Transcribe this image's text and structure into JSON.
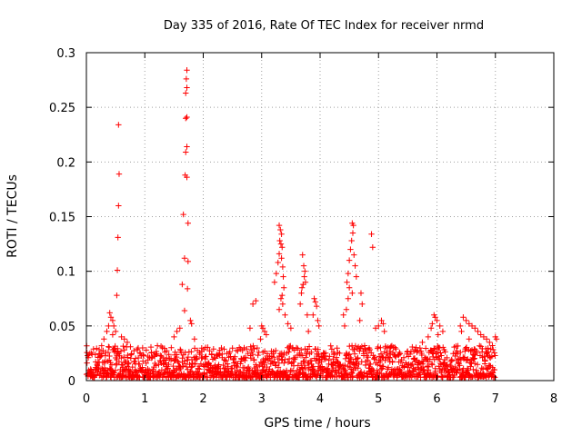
{
  "chart_data": {
    "type": "scatter",
    "title": "Day 335 of 2016, Rate Of TEC Index for receiver nrmd",
    "xlabel": "GPS time / hours",
    "ylabel": "ROTI / TECUs",
    "xlim": [
      0,
      8
    ],
    "ylim": [
      0,
      0.3
    ],
    "xticks": [
      "0",
      "1",
      "2",
      "3",
      "4",
      "5",
      "6",
      "7",
      "8"
    ],
    "yticks": [
      "0",
      "0.05",
      "0.1",
      "0.15",
      "0.2",
      "0.25",
      "0.3"
    ],
    "grid": true,
    "marker": "+",
    "color": "#ff0000",
    "series": [
      {
        "name": "ROTI",
        "points": [
          [
            0.55,
            0.234
          ],
          [
            0.56,
            0.189
          ],
          [
            0.55,
            0.16
          ],
          [
            0.54,
            0.131
          ],
          [
            0.53,
            0.101
          ],
          [
            0.52,
            0.078
          ],
          [
            0.4,
            0.062
          ],
          [
            0.42,
            0.058
          ],
          [
            0.45,
            0.055
          ],
          [
            0.38,
            0.05
          ],
          [
            0.47,
            0.05
          ],
          [
            0.35,
            0.045
          ],
          [
            0.5,
            0.045
          ],
          [
            0.6,
            0.04
          ],
          [
            0.65,
            0.038
          ],
          [
            0.7,
            0.035
          ],
          [
            0.3,
            0.038
          ],
          [
            0.45,
            0.042
          ],
          [
            1.72,
            0.284
          ],
          [
            1.71,
            0.276
          ],
          [
            1.72,
            0.268
          ],
          [
            1.7,
            0.263
          ],
          [
            1.72,
            0.241
          ],
          [
            1.7,
            0.24
          ],
          [
            1.72,
            0.214
          ],
          [
            1.7,
            0.209
          ],
          [
            1.69,
            0.188
          ],
          [
            1.72,
            0.186
          ],
          [
            1.66,
            0.152
          ],
          [
            1.74,
            0.144
          ],
          [
            1.68,
            0.112
          ],
          [
            1.74,
            0.109
          ],
          [
            1.64,
            0.088
          ],
          [
            1.73,
            0.084
          ],
          [
            1.68,
            0.064
          ],
          [
            1.78,
            0.055
          ],
          [
            1.8,
            0.052
          ],
          [
            1.6,
            0.048
          ],
          [
            1.55,
            0.045
          ],
          [
            1.5,
            0.04
          ],
          [
            1.85,
            0.038
          ],
          [
            2.85,
            0.07
          ],
          [
            2.9,
            0.073
          ],
          [
            2.8,
            0.048
          ],
          [
            2.7,
            0.03
          ],
          [
            3.0,
            0.05
          ],
          [
            3.02,
            0.048
          ],
          [
            3.05,
            0.045
          ],
          [
            3.08,
            0.042
          ],
          [
            2.98,
            0.038
          ],
          [
            3.3,
            0.142
          ],
          [
            3.32,
            0.138
          ],
          [
            3.34,
            0.134
          ],
          [
            3.31,
            0.128
          ],
          [
            3.33,
            0.125
          ],
          [
            3.35,
            0.122
          ],
          [
            3.3,
            0.116
          ],
          [
            3.34,
            0.112
          ],
          [
            3.28,
            0.108
          ],
          [
            3.36,
            0.104
          ],
          [
            3.25,
            0.098
          ],
          [
            3.37,
            0.095
          ],
          [
            3.22,
            0.09
          ],
          [
            3.38,
            0.085
          ],
          [
            3.35,
            0.078
          ],
          [
            3.33,
            0.075
          ],
          [
            3.36,
            0.07
          ],
          [
            3.3,
            0.065
          ],
          [
            3.4,
            0.06
          ],
          [
            3.45,
            0.052
          ],
          [
            3.5,
            0.048
          ],
          [
            3.7,
            0.115
          ],
          [
            3.72,
            0.105
          ],
          [
            3.74,
            0.1
          ],
          [
            3.73,
            0.095
          ],
          [
            3.71,
            0.088
          ],
          [
            3.69,
            0.085
          ],
          [
            3.68,
            0.08
          ],
          [
            3.66,
            0.07
          ],
          [
            3.75,
            0.09
          ],
          [
            3.78,
            0.06
          ],
          [
            3.8,
            0.045
          ],
          [
            3.9,
            0.075
          ],
          [
            3.92,
            0.072
          ],
          [
            3.94,
            0.068
          ],
          [
            3.88,
            0.06
          ],
          [
            3.96,
            0.055
          ],
          [
            3.98,
            0.05
          ],
          [
            4.55,
            0.144
          ],
          [
            4.57,
            0.142
          ],
          [
            4.56,
            0.135
          ],
          [
            4.54,
            0.128
          ],
          [
            4.52,
            0.12
          ],
          [
            4.58,
            0.115
          ],
          [
            4.5,
            0.11
          ],
          [
            4.6,
            0.105
          ],
          [
            4.48,
            0.098
          ],
          [
            4.62,
            0.095
          ],
          [
            4.46,
            0.09
          ],
          [
            4.5,
            0.085
          ],
          [
            4.55,
            0.08
          ],
          [
            4.48,
            0.075
          ],
          [
            4.45,
            0.065
          ],
          [
            4.4,
            0.06
          ],
          [
            4.42,
            0.05
          ],
          [
            4.88,
            0.134
          ],
          [
            4.9,
            0.122
          ],
          [
            4.7,
            0.08
          ],
          [
            4.72,
            0.07
          ],
          [
            4.68,
            0.055
          ],
          [
            4.95,
            0.048
          ],
          [
            5.0,
            0.05
          ],
          [
            5.05,
            0.055
          ],
          [
            5.08,
            0.052
          ],
          [
            5.1,
            0.045
          ],
          [
            5.95,
            0.06
          ],
          [
            5.97,
            0.058
          ],
          [
            6.0,
            0.055
          ],
          [
            5.92,
            0.052
          ],
          [
            6.05,
            0.05
          ],
          [
            5.9,
            0.048
          ],
          [
            6.1,
            0.045
          ],
          [
            6.02,
            0.042
          ],
          [
            5.85,
            0.04
          ],
          [
            5.75,
            0.035
          ],
          [
            6.45,
            0.058
          ],
          [
            6.5,
            0.055
          ],
          [
            6.55,
            0.052
          ],
          [
            6.6,
            0.05
          ],
          [
            6.65,
            0.048
          ],
          [
            6.7,
            0.045
          ],
          [
            6.75,
            0.042
          ],
          [
            6.8,
            0.04
          ],
          [
            6.85,
            0.038
          ],
          [
            6.9,
            0.035
          ],
          [
            6.95,
            0.032
          ],
          [
            7.0,
            0.04
          ],
          [
            7.02,
            0.038
          ],
          [
            6.4,
            0.05
          ],
          [
            6.42,
            0.045
          ],
          [
            6.5,
            0.03
          ],
          [
            6.6,
            0.028
          ],
          [
            6.55,
            0.038
          ]
        ]
      }
    ],
    "baseline_band": {
      "description": "dense noise floor of ROTI values",
      "x_range": [
        0,
        7.0
      ],
      "y_range": [
        0.003,
        0.032
      ]
    }
  }
}
